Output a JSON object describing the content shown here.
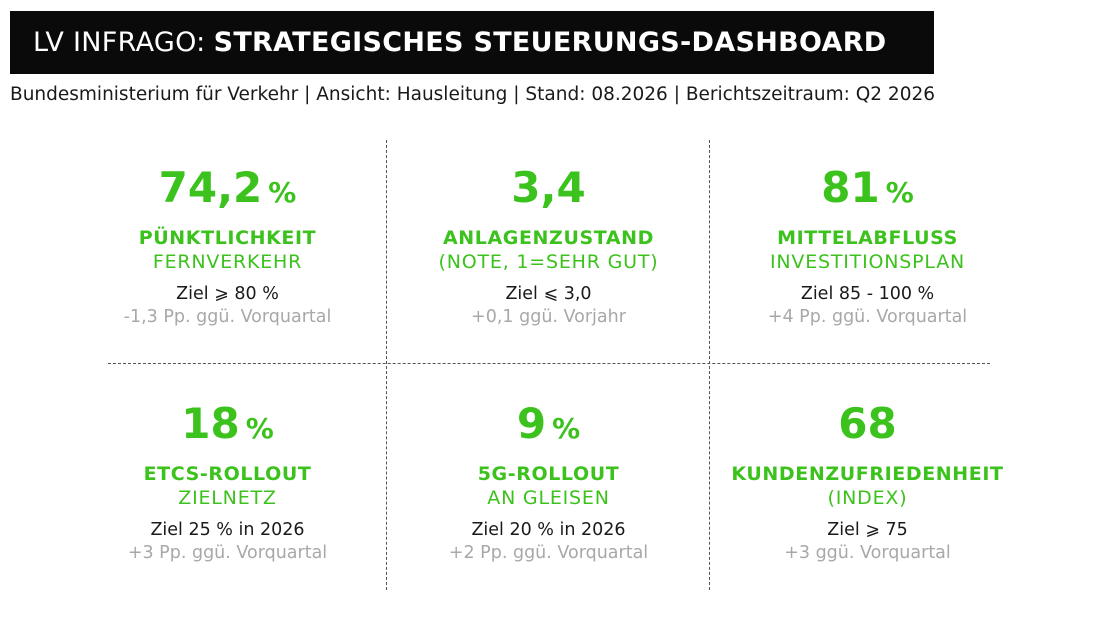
{
  "header": {
    "title_prefix": "LV INFRAGO:",
    "title_main": "STRATEGISCHES STEUERUNGS-DASHBOARD",
    "subtitle": "Bundesministerium für Verkehr | Ansicht: Hausleitung | Stand: 08.2026 | Berichtszeitraum: Q2 2026"
  },
  "colors": {
    "accent": "#3cc21c",
    "title_bg": "#0a0a0a",
    "muted": "#a8a8a8"
  },
  "kpis": [
    {
      "value": "74,2",
      "unit": "%",
      "label": "PÜNKTLICHKEIT",
      "sublabel": "FERNVERKEHR",
      "target": "Ziel ⩾ 80 %",
      "change": "-1,3 Pp. ggü. Vorquartal"
    },
    {
      "value": "3,4",
      "unit": "",
      "label": "ANLAGENZUSTAND",
      "sublabel": "(NOTE, 1=SEHR GUT)",
      "target": "Ziel ⩽ 3,0",
      "change": "+0,1 ggü. Vorjahr"
    },
    {
      "value": "81",
      "unit": "%",
      "label": "MITTELABFLUSS",
      "sublabel": "INVESTITIONSPLAN",
      "target": "Ziel 85 - 100 %",
      "change": "+4 Pp. ggü. Vorquartal"
    },
    {
      "value": "18",
      "unit": "%",
      "label": "ETCS-ROLLOUT",
      "sublabel": "ZIELNETZ",
      "target": "Ziel 25 % in 2026",
      "change": "+3 Pp. ggü. Vorquartal"
    },
    {
      "value": "9",
      "unit": "%",
      "label": "5G-ROLLOUT",
      "sublabel": "AN GLEISEN",
      "target": "Ziel 20 % in 2026",
      "change": "+2 Pp. ggü. Vorquartal"
    },
    {
      "value": "68",
      "unit": "",
      "label": "KUNDENZUFRIEDENHEIT",
      "sublabel": "(INDEX)",
      "target": "Ziel ⩾ 75",
      "change": "+3 ggü. Vorquartal"
    }
  ]
}
